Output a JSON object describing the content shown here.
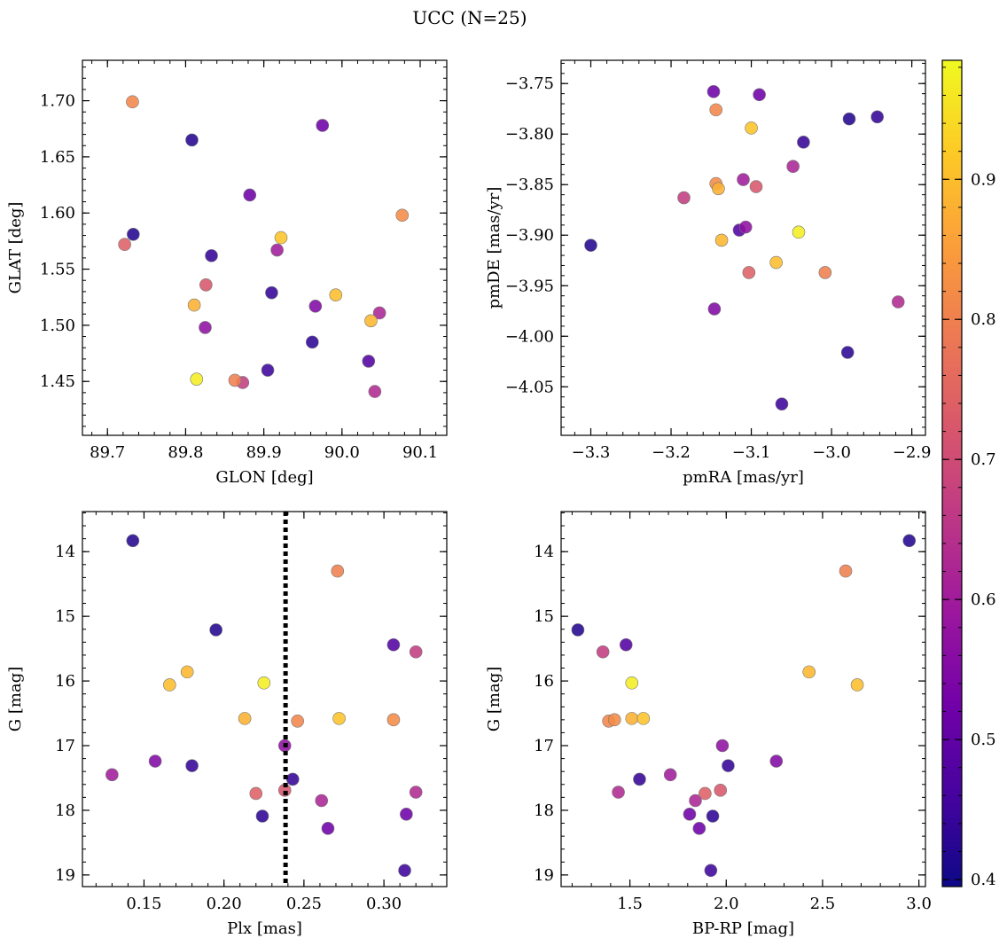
{
  "figure": {
    "title": "UCC (N=25)"
  },
  "colorbar": {
    "range": [
      0.395,
      0.985
    ],
    "ticks": [
      0.4,
      0.5,
      0.6,
      0.7,
      0.8,
      0.9
    ],
    "tick_labels": [
      "0.4",
      "0.5",
      "0.6",
      "0.7",
      "0.8",
      "0.9"
    ],
    "colormap": "plasma"
  },
  "stars": [
    {
      "glon": 89.808,
      "glat": 1.665,
      "pmra": -2.978,
      "pmde": -3.785,
      "plx": 0.143,
      "g": 13.83,
      "bprp": 2.95,
      "prob": 0.42
    },
    {
      "glon": 89.733,
      "glat": 1.581,
      "pmra": -3.3,
      "pmde": -3.91,
      "plx": 0.195,
      "g": 15.21,
      "bprp": 1.23,
      "prob": 0.42
    },
    {
      "glon": 89.833,
      "glat": 1.562,
      "pmra": -3.035,
      "pmde": -3.808,
      "plx": 0.18,
      "g": 17.31,
      "bprp": 2.01,
      "prob": 0.44
    },
    {
      "glon": 89.91,
      "glat": 1.529,
      "pmra": -2.943,
      "pmde": -3.783,
      "plx": 0.243,
      "g": 17.52,
      "bprp": 1.55,
      "prob": 0.44
    },
    {
      "glon": 89.962,
      "glat": 1.485,
      "pmra": -2.98,
      "pmde": -4.016,
      "plx": 0.224,
      "g": 18.09,
      "bprp": 1.93,
      "prob": 0.43
    },
    {
      "glon": 89.905,
      "glat": 1.46,
      "pmra": -3.062,
      "pmde": -4.067,
      "plx": 0.313,
      "g": 18.93,
      "bprp": 1.92,
      "prob": 0.45
    },
    {
      "glon": 90.034,
      "glat": 1.468,
      "pmra": -3.115,
      "pmde": -3.895,
      "plx": 0.306,
      "g": 15.44,
      "bprp": 1.48,
      "prob": 0.48
    },
    {
      "glon": 89.975,
      "glat": 1.678,
      "pmra": -3.147,
      "pmde": -3.758,
      "plx": 0.265,
      "g": 18.28,
      "bprp": 1.86,
      "prob": 0.52
    },
    {
      "glon": 89.882,
      "glat": 1.616,
      "pmra": -3.09,
      "pmde": -3.761,
      "plx": 0.314,
      "g": 18.06,
      "bprp": 1.81,
      "prob": 0.52
    },
    {
      "glon": 89.966,
      "glat": 1.517,
      "pmra": -3.146,
      "pmde": -3.973,
      "plx": 0.157,
      "g": 17.24,
      "bprp": 2.26,
      "prob": 0.55
    },
    {
      "glon": 89.825,
      "glat": 1.498,
      "pmra": -3.107,
      "pmde": -3.892,
      "plx": 0.238,
      "g": 17.0,
      "bprp": 1.98,
      "prob": 0.57
    },
    {
      "glon": 89.917,
      "glat": 1.567,
      "pmra": -3.11,
      "pmde": -3.845,
      "plx": 0.13,
      "g": 17.45,
      "bprp": 1.71,
      "prob": 0.6
    },
    {
      "glon": 90.048,
      "glat": 1.511,
      "pmra": -3.048,
      "pmde": -3.832,
      "plx": 0.261,
      "g": 17.85,
      "bprp": 1.84,
      "prob": 0.62
    },
    {
      "glon": 90.042,
      "glat": 1.441,
      "pmra": -2.917,
      "pmde": -3.966,
      "plx": 0.32,
      "g": 17.72,
      "bprp": 1.44,
      "prob": 0.63
    },
    {
      "glon": 89.873,
      "glat": 1.449,
      "pmra": -3.184,
      "pmde": -3.863,
      "plx": 0.32,
      "g": 15.55,
      "bprp": 1.36,
      "prob": 0.67
    },
    {
      "glon": 89.826,
      "glat": 1.536,
      "pmra": -3.094,
      "pmde": -3.852,
      "plx": 0.238,
      "g": 17.69,
      "bprp": 1.97,
      "prob": 0.72
    },
    {
      "glon": 89.722,
      "glat": 1.572,
      "pmra": -3.103,
      "pmde": -3.937,
      "plx": 0.22,
      "g": 17.74,
      "bprp": 1.89,
      "prob": 0.74
    },
    {
      "glon": 89.863,
      "glat": 1.451,
      "pmra": -3.008,
      "pmde": -3.937,
      "plx": 0.271,
      "g": 14.3,
      "bprp": 2.62,
      "prob": 0.8
    },
    {
      "glon": 89.732,
      "glat": 1.699,
      "pmra": -3.144,
      "pmde": -3.776,
      "plx": 0.246,
      "g": 16.62,
      "bprp": 1.39,
      "prob": 0.81
    },
    {
      "glon": 90.077,
      "glat": 1.598,
      "pmra": -3.144,
      "pmde": -3.849,
      "plx": 0.306,
      "g": 16.6,
      "bprp": 1.42,
      "prob": 0.82
    },
    {
      "glon": 89.811,
      "glat": 1.518,
      "pmra": -3.141,
      "pmde": -3.854,
      "plx": 0.213,
      "g": 16.58,
      "bprp": 1.51,
      "prob": 0.88
    },
    {
      "glon": 90.037,
      "glat": 1.504,
      "pmra": -3.137,
      "pmde": -3.905,
      "plx": 0.177,
      "g": 15.86,
      "bprp": 2.43,
      "prob": 0.89
    },
    {
      "glon": 89.992,
      "glat": 1.527,
      "pmra": -3.069,
      "pmde": -3.927,
      "plx": 0.166,
      "g": 16.06,
      "bprp": 2.68,
      "prob": 0.9
    },
    {
      "glon": 89.922,
      "glat": 1.578,
      "pmra": -3.1,
      "pmde": -3.794,
      "plx": 0.272,
      "g": 16.58,
      "bprp": 1.57,
      "prob": 0.91
    },
    {
      "glon": 89.814,
      "glat": 1.452,
      "pmra": -3.041,
      "pmde": -3.897,
      "plx": 0.225,
      "g": 16.03,
      "bprp": 1.51,
      "prob": 0.97
    }
  ],
  "panels": [
    {
      "id": "glon-glat",
      "xkey": "glon",
      "ykey": "glat",
      "xlabel": "GLON [deg]",
      "ylabel": "GLAT [deg]",
      "xlim": [
        89.668,
        90.134
      ],
      "ylim": [
        1.402,
        1.736
      ],
      "invert_y": false,
      "xticks": [
        89.7,
        89.8,
        89.9,
        90.0,
        90.1
      ],
      "xtick_labels": [
        "89.7",
        "89.8",
        "89.9",
        "90.0",
        "90.1"
      ],
      "yticks": [
        1.45,
        1.5,
        1.55,
        1.6,
        1.65,
        1.7
      ],
      "ytick_labels": [
        "1.45",
        "1.50",
        "1.55",
        "1.60",
        "1.65",
        "1.70"
      ],
      "xminor_step": 0.02,
      "yminor_step": 0.01
    },
    {
      "id": "pm",
      "xkey": "pmra",
      "ykey": "pmde",
      "xlabel": "pmRA [mas/yr]",
      "ylabel": "pmDE [mas/yr]",
      "xlim": [
        -3.337,
        -2.883
      ],
      "ylim": [
        -4.098,
        -3.727
      ],
      "invert_y": false,
      "xticks": [
        -3.3,
        -3.2,
        -3.1,
        -3.0,
        -2.9
      ],
      "xtick_labels": [
        "−3.3",
        "−3.2",
        "−3.1",
        "−3.0",
        "−2.9"
      ],
      "yticks": [
        -4.05,
        -4.0,
        -3.95,
        -3.9,
        -3.85,
        -3.8,
        -3.75
      ],
      "ytick_labels": [
        "−4.05",
        "−4.00",
        "−3.95",
        "−3.90",
        "−3.85",
        "−3.80",
        "−3.75"
      ],
      "xminor_step": 0.02,
      "yminor_step": 0.01
    },
    {
      "id": "plx-g",
      "xkey": "plx",
      "ykey": "g",
      "xlabel": "Plx [mas]",
      "ylabel": "G [mag]",
      "xlim": [
        0.1115,
        0.3393
      ],
      "ylim": [
        13.38,
        19.18
      ],
      "invert_y": true,
      "xticks": [
        0.15,
        0.2,
        0.25,
        0.3
      ],
      "xtick_labels": [
        "0.15",
        "0.20",
        "0.25",
        "0.30"
      ],
      "yticks": [
        14,
        15,
        16,
        17,
        18,
        19
      ],
      "ytick_labels": [
        "14",
        "15",
        "16",
        "17",
        "18",
        "19"
      ],
      "xminor_step": 0.01,
      "yminor_step": 0.2,
      "vline": 0.2385
    },
    {
      "id": "cmd",
      "xkey": "bprp",
      "ykey": "g",
      "xlabel": "BP-RP [mag]",
      "ylabel": "G [mag]",
      "xlim": [
        1.143,
        3.034
      ],
      "ylim": [
        13.38,
        19.18
      ],
      "invert_y": true,
      "xticks": [
        1.5,
        2.0,
        2.5,
        3.0
      ],
      "xtick_labels": [
        "1.5",
        "2.0",
        "2.5",
        "3.0"
      ],
      "yticks": [
        14,
        15,
        16,
        17,
        18,
        19
      ],
      "ytick_labels": [
        "14",
        "15",
        "16",
        "17",
        "18",
        "19"
      ],
      "xminor_step": 0.1,
      "yminor_step": 0.2
    }
  ],
  "chart_data": [
    {
      "type": "scatter",
      "title": "UCC (N=25)",
      "xlabel": "GLON [deg]",
      "ylabel": "GLAT [deg]",
      "xlim": [
        89.668,
        90.134
      ],
      "ylim": [
        1.402,
        1.736
      ],
      "color_by": "membership probability (colorbar 0.4–0.9)",
      "x": [
        89.808,
        89.733,
        89.833,
        89.91,
        89.962,
        89.905,
        90.034,
        89.975,
        89.882,
        89.966,
        89.825,
        89.917,
        90.048,
        90.042,
        89.873,
        89.826,
        89.722,
        89.863,
        89.732,
        90.077,
        89.811,
        90.037,
        89.992,
        89.922,
        89.814
      ],
      "y": [
        1.665,
        1.581,
        1.562,
        1.529,
        1.485,
        1.46,
        1.468,
        1.678,
        1.616,
        1.517,
        1.498,
        1.567,
        1.511,
        1.441,
        1.449,
        1.536,
        1.572,
        1.451,
        1.699,
        1.598,
        1.518,
        1.504,
        1.527,
        1.578,
        1.452
      ]
    },
    {
      "type": "scatter",
      "xlabel": "pmRA [mas/yr]",
      "ylabel": "pmDE [mas/yr]",
      "xlim": [
        -3.337,
        -2.883
      ],
      "ylim": [
        -4.098,
        -3.727
      ],
      "x": [
        -2.978,
        -3.3,
        -3.035,
        -2.943,
        -2.98,
        -3.062,
        -3.115,
        -3.147,
        -3.09,
        -3.146,
        -3.107,
        -3.11,
        -3.048,
        -2.917,
        -3.184,
        -3.094,
        -3.103,
        -3.008,
        -3.144,
        -3.144,
        -3.141,
        -3.137,
        -3.069,
        -3.1,
        -3.041
      ],
      "y": [
        -3.785,
        -3.91,
        -3.808,
        -3.783,
        -4.016,
        -4.067,
        -3.895,
        -3.758,
        -3.761,
        -3.973,
        -3.892,
        -3.845,
        -3.832,
        -3.966,
        -3.863,
        -3.852,
        -3.937,
        -3.937,
        -3.776,
        -3.849,
        -3.854,
        -3.905,
        -3.927,
        -3.794,
        -3.897
      ]
    },
    {
      "type": "scatter",
      "xlabel": "Plx [mas]",
      "ylabel": "G [mag]",
      "xlim": [
        0.1115,
        0.3393
      ],
      "ylim": [
        19.18,
        13.38
      ],
      "y_inverted": true,
      "vertical_dotted_line_x": 0.2385,
      "x": [
        0.143,
        0.195,
        0.18,
        0.243,
        0.224,
        0.313,
        0.306,
        0.265,
        0.314,
        0.157,
        0.238,
        0.13,
        0.261,
        0.32,
        0.32,
        0.238,
        0.22,
        0.271,
        0.246,
        0.306,
        0.213,
        0.177,
        0.166,
        0.272,
        0.225
      ],
      "y": [
        13.83,
        15.21,
        17.31,
        17.52,
        18.09,
        18.93,
        15.44,
        18.28,
        18.06,
        17.24,
        17.0,
        17.45,
        17.85,
        17.72,
        15.55,
        17.69,
        17.74,
        14.3,
        16.62,
        16.6,
        16.58,
        15.86,
        16.06,
        16.58,
        16.03
      ]
    },
    {
      "type": "scatter",
      "xlabel": "BP-RP [mag]",
      "ylabel": "G [mag]",
      "xlim": [
        1.143,
        3.034
      ],
      "ylim": [
        19.18,
        13.38
      ],
      "y_inverted": true,
      "x": [
        2.95,
        1.23,
        2.01,
        1.55,
        1.93,
        1.92,
        1.48,
        1.86,
        1.81,
        2.26,
        1.98,
        1.71,
        1.84,
        1.44,
        1.36,
        1.97,
        1.89,
        2.62,
        1.39,
        1.42,
        1.51,
        2.43,
        2.68,
        1.57,
        1.51
      ],
      "y": [
        13.83,
        15.21,
        17.31,
        17.52,
        18.09,
        18.93,
        15.44,
        18.28,
        18.06,
        17.24,
        17.0,
        17.45,
        17.85,
        17.72,
        15.55,
        17.69,
        17.74,
        14.3,
        16.62,
        16.6,
        16.58,
        15.86,
        16.06,
        16.58,
        16.03
      ]
    }
  ]
}
